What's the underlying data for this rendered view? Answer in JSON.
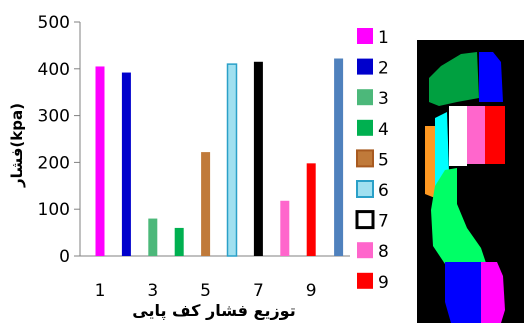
{
  "chart_data": {
    "type": "bar",
    "title": "",
    "xlabel": "توزیع فشار کف پایی",
    "ylabel": "فشار(kpa)",
    "ylim": [
      0,
      500
    ],
    "yticks": [
      "0",
      "100",
      "200",
      "300",
      "400",
      "500"
    ],
    "xticks": [
      "1",
      "3",
      "5",
      "7",
      "9"
    ],
    "grid": false,
    "legend_position": "right",
    "categories": [
      "1",
      "2",
      "3",
      "4",
      "5",
      "6",
      "7",
      "8",
      "9"
    ],
    "values": [
      405,
      392,
      80,
      60,
      222,
      410,
      415,
      118,
      198
    ],
    "colors": [
      "#ff00ff",
      "#0000cc",
      "#4cb87a",
      "#00b050",
      "#c07a3a",
      "#a0e0f0",
      "#000000",
      "#ff66cc",
      "#ff0000"
    ],
    "legend": [
      "1",
      "2",
      "3",
      "4",
      "5",
      "6",
      "7",
      "8",
      "9"
    ],
    "extra_bar": {
      "value": 422,
      "color": "#4f81bd"
    }
  },
  "figure": {
    "foot_map_label": "foot-region-pressure-map",
    "foot_regions": [
      {
        "id": "1",
        "color": "#ff00ff"
      },
      {
        "id": "2",
        "color": "#0000ff"
      },
      {
        "id": "3",
        "color": "#00ff66"
      },
      {
        "id": "4",
        "color": "#00a040"
      },
      {
        "id": "5",
        "color": "#ff9922"
      },
      {
        "id": "6",
        "color": "#00ffff"
      },
      {
        "id": "7",
        "color": "#ffffff"
      },
      {
        "id": "8",
        "color": "#ff66cc"
      },
      {
        "id": "9",
        "color": "#ff0000"
      }
    ]
  }
}
